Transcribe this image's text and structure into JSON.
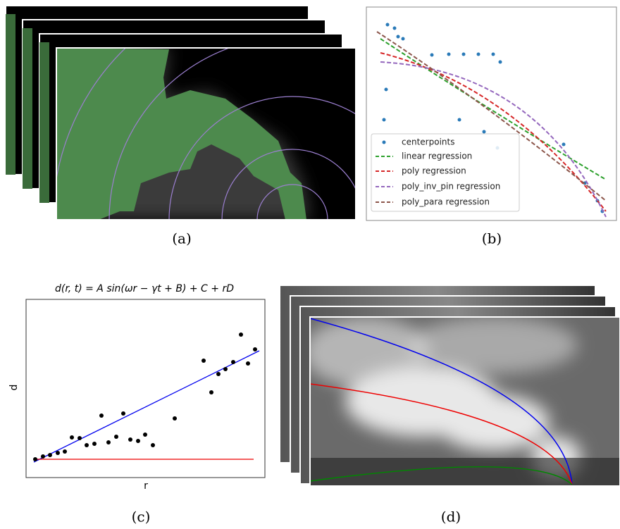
{
  "panels": [
    {
      "caption": "(a)"
    },
    {
      "caption": "(b)",
      "legend": [
        "centerpoints",
        "linear regression",
        "poly regression",
        "poly_inv_pin regression",
        "poly_para regression"
      ]
    },
    {
      "caption": "(c)",
      "title": "d(r, t) = A sin(ωr − γt + B) + C + rD",
      "x_label": "r",
      "y_label": "d"
    },
    {
      "caption": "(d)"
    }
  ]
}
